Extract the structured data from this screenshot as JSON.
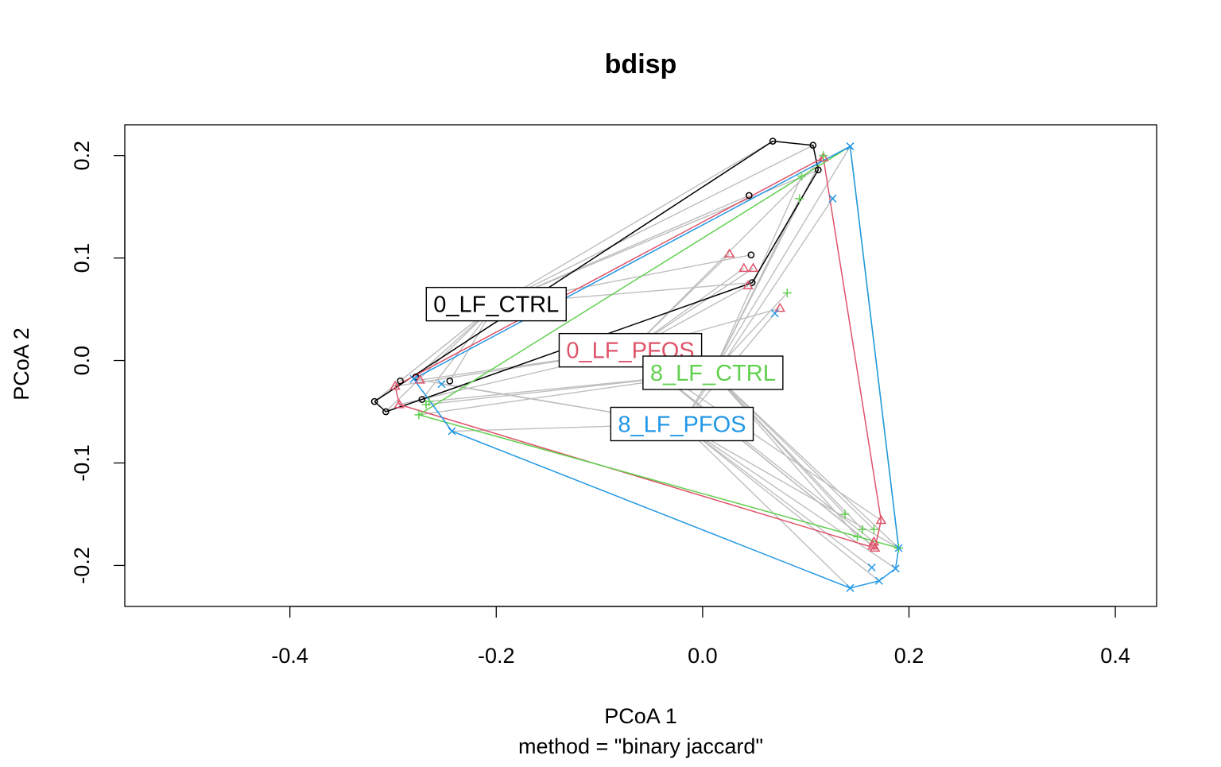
{
  "chart_data": {
    "type": "scatter",
    "title": "bdisp",
    "xlabel": "PCoA 1",
    "ylabel": "PCoA 2",
    "subtitle": "method = \"binary jaccard\"",
    "xlim": [
      -0.56,
      0.44
    ],
    "ylim": [
      -0.24,
      0.23
    ],
    "xticks": [
      -0.4,
      -0.2,
      0.0,
      0.2,
      0.4
    ],
    "yticks": [
      -0.2,
      -0.1,
      0.0,
      0.1,
      0.2
    ],
    "xtick_labels": [
      "-0.4",
      "-0.2",
      "0.0",
      "0.2",
      "0.4"
    ],
    "ytick_labels": [
      "-0.2",
      "-0.1",
      "0.0",
      "0.1",
      "0.2"
    ],
    "grid": false,
    "spider_color": "#bebebe",
    "series": [
      {
        "name": "0_LF_CTRL",
        "color": "#000000",
        "marker": "circle",
        "centroid": [
          -0.2,
          0.055
        ],
        "hull": [
          [
            -0.318,
            -0.04
          ],
          [
            -0.307,
            -0.05
          ],
          [
            -0.272,
            -0.038
          ],
          [
            0.048,
            0.076
          ],
          [
            0.112,
            0.186
          ],
          [
            0.107,
            0.21
          ],
          [
            0.068,
            0.214
          ],
          [
            -0.318,
            -0.04
          ]
        ],
        "points": [
          [
            -0.318,
            -0.04
          ],
          [
            -0.307,
            -0.05
          ],
          [
            -0.272,
            -0.038
          ],
          [
            -0.293,
            -0.02
          ],
          [
            -0.245,
            -0.02
          ],
          [
            0.048,
            0.076
          ],
          [
            0.047,
            0.103
          ],
          [
            0.045,
            0.161
          ],
          [
            0.112,
            0.186
          ],
          [
            0.107,
            0.21
          ],
          [
            0.068,
            0.214
          ],
          [
            -0.278,
            -0.016
          ]
        ]
      },
      {
        "name": "0_LF_PFOS",
        "color": "#df536b",
        "marker": "triangle",
        "centroid": [
          -0.07,
          0.01
        ],
        "hull": [
          [
            -0.298,
            -0.025
          ],
          [
            -0.294,
            -0.043
          ],
          [
            0.167,
            -0.183
          ],
          [
            0.173,
            -0.156
          ],
          [
            0.117,
            0.198
          ],
          [
            -0.298,
            -0.025
          ]
        ],
        "points": [
          [
            -0.298,
            -0.025
          ],
          [
            -0.294,
            -0.043
          ],
          [
            -0.274,
            -0.019
          ],
          [
            0.026,
            0.104
          ],
          [
            0.04,
            0.09
          ],
          [
            0.049,
            0.09
          ],
          [
            0.044,
            0.073
          ],
          [
            0.075,
            0.051
          ],
          [
            0.117,
            0.198
          ],
          [
            0.173,
            -0.156
          ],
          [
            0.167,
            -0.183
          ],
          [
            0.166,
            -0.177
          ],
          [
            0.165,
            -0.181
          ]
        ]
      },
      {
        "name": "8_LF_CTRL",
        "color": "#61d04f",
        "marker": "plus",
        "centroid": [
          0.01,
          -0.012
        ],
        "hull": [
          [
            -0.275,
            -0.053
          ],
          [
            0.19,
            -0.183
          ],
          [
            0.143,
            0.209
          ],
          [
            -0.275,
            -0.053
          ]
        ],
        "points": [
          [
            -0.275,
            -0.053
          ],
          [
            -0.268,
            -0.043
          ],
          [
            -0.265,
            -0.04
          ],
          [
            0.082,
            0.066
          ],
          [
            0.094,
            0.158
          ],
          [
            0.096,
            0.18
          ],
          [
            0.117,
            0.2
          ],
          [
            0.138,
            -0.15
          ],
          [
            0.15,
            -0.172
          ],
          [
            0.155,
            -0.165
          ],
          [
            0.166,
            -0.165
          ],
          [
            0.19,
            -0.183
          ]
        ]
      },
      {
        "name": "8_LF_PFOS",
        "color": "#2297e6",
        "marker": "x",
        "centroid": [
          -0.02,
          -0.062
        ],
        "hull": [
          [
            -0.28,
            -0.018
          ],
          [
            -0.243,
            -0.069
          ],
          [
            0.143,
            -0.222
          ],
          [
            0.171,
            -0.215
          ],
          [
            0.187,
            -0.203
          ],
          [
            0.19,
            -0.183
          ],
          [
            0.143,
            0.209
          ],
          [
            -0.28,
            -0.018
          ]
        ],
        "points": [
          [
            -0.28,
            -0.018
          ],
          [
            -0.253,
            -0.023
          ],
          [
            -0.243,
            -0.069
          ],
          [
            0.07,
            0.046
          ],
          [
            0.126,
            0.158
          ],
          [
            0.143,
            0.209
          ],
          [
            0.19,
            -0.183
          ],
          [
            0.187,
            -0.203
          ],
          [
            0.164,
            -0.202
          ],
          [
            0.171,
            -0.215
          ],
          [
            0.143,
            -0.222
          ]
        ]
      }
    ]
  }
}
